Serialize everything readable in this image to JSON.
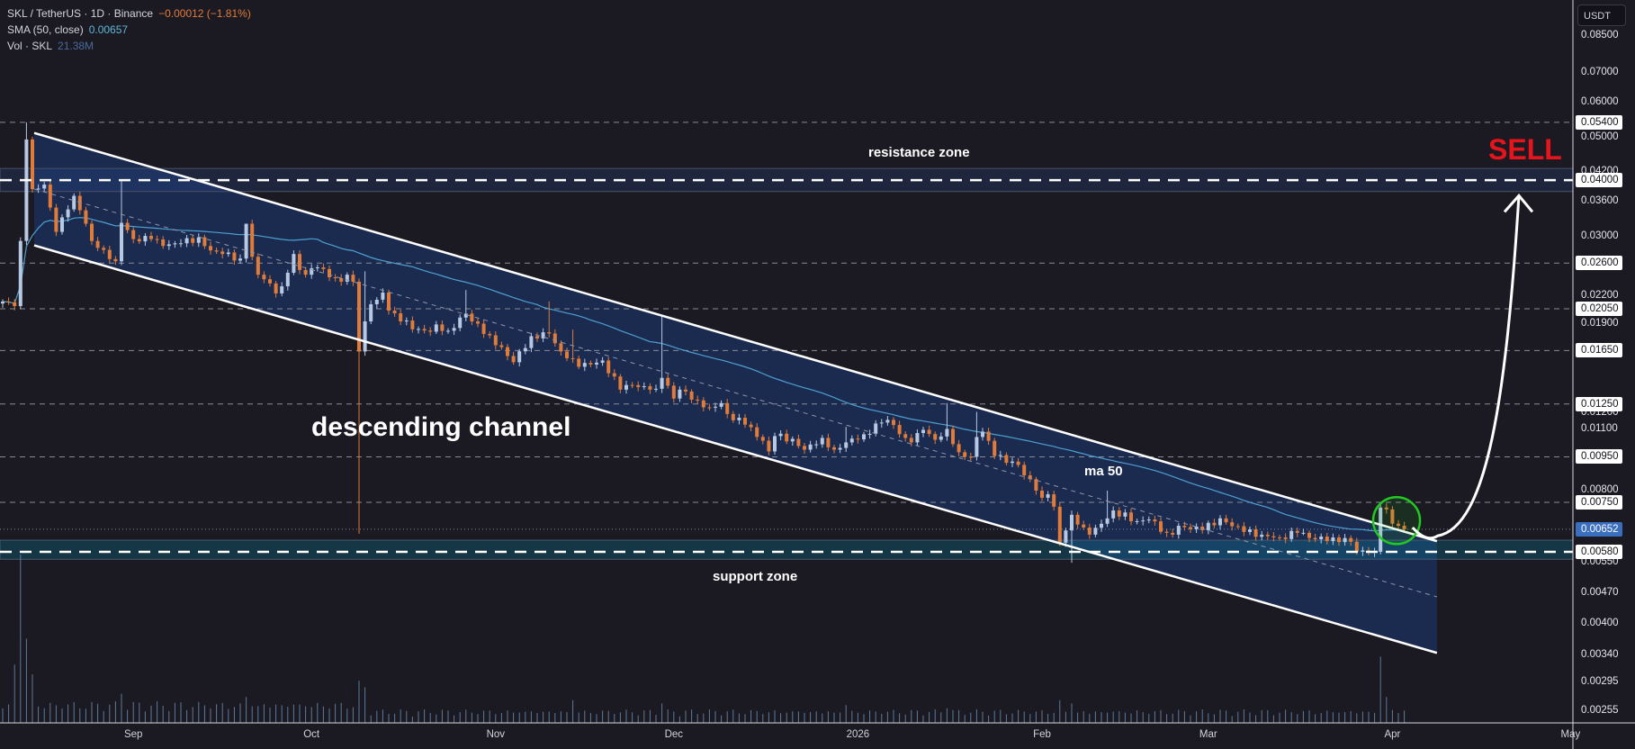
{
  "legend": {
    "symbol": "SKL / TetherUS · 1D · Binance",
    "change": "−0.00012 (−1.81%)",
    "sma_label": "SMA (50, close)",
    "sma_value": "0.00657",
    "vol_label": "Vol · SKL",
    "vol_value": "21.38M"
  },
  "currency_button": "USDT",
  "annotations": {
    "sell": "SELL",
    "resistance": "resistance zone",
    "support": "support zone",
    "channel": "descending channel",
    "ma": "ma 50"
  },
  "colors": {
    "background": "#1b1a23",
    "up": "#b7c8e2",
    "down": "#e07b39",
    "sma": "#4ea0d0",
    "sell": "#e8141c",
    "channel_fill": "#1b2b4f",
    "circle": "#22c91e",
    "volume": "#5d7a99"
  },
  "chart_data": {
    "type": "candlestick",
    "title": "SKL / TetherUS · 1D · Binance",
    "scale": "log",
    "ylim": [
      0.00225,
      0.095
    ],
    "x_range_days": [
      -1,
      266
    ],
    "x_ticks": [
      {
        "label": "Sep",
        "day": 22
      },
      {
        "label": "Oct",
        "day": 52
      },
      {
        "label": "Nov",
        "day": 83
      },
      {
        "label": "Dec",
        "day": 113
      },
      {
        "label": "2026",
        "day": 144
      },
      {
        "label": "Feb",
        "day": 175
      },
      {
        "label": "Mar",
        "day": 203
      },
      {
        "label": "Apr",
        "day": 234
      },
      {
        "label": "May",
        "day": 264
      }
    ],
    "y_ticks": [
      {
        "label": "0.08500",
        "value": 0.085
      },
      {
        "label": "0.07000",
        "value": 0.07
      },
      {
        "label": "0.06000",
        "value": 0.06
      },
      {
        "label": "0.05000",
        "value": 0.05
      },
      {
        "label": "0.04200",
        "value": 0.042
      },
      {
        "label": "0.03600",
        "value": 0.036
      },
      {
        "label": "0.03000",
        "value": 0.03
      },
      {
        "label": "0.02200",
        "value": 0.022
      },
      {
        "label": "0.01900",
        "value": 0.019
      },
      {
        "label": "0.01200",
        "value": 0.012
      },
      {
        "label": "0.01100",
        "value": 0.011
      },
      {
        "label": "0.00800",
        "value": 0.008
      },
      {
        "label": "0.00550",
        "value": 0.0055
      },
      {
        "label": "0.00470",
        "value": 0.0047
      },
      {
        "label": "0.00400",
        "value": 0.004
      },
      {
        "label": "0.00340",
        "value": 0.0034
      },
      {
        "label": "0.00295",
        "value": 0.00295
      },
      {
        "label": "0.00255",
        "value": 0.00255
      }
    ],
    "levels": [
      {
        "label": "0.05400",
        "value": 0.054
      },
      {
        "label": "0.02600",
        "value": 0.026
      },
      {
        "label": "0.02050",
        "value": 0.0205
      },
      {
        "label": "0.01650",
        "value": 0.0165
      },
      {
        "label": "0.01250",
        "value": 0.0125
      },
      {
        "label": "0.00950",
        "value": 0.0095
      },
      {
        "label": "0.00750",
        "value": 0.0075
      }
    ],
    "resistance_zone": {
      "label": "0.04000",
      "value": 0.04,
      "top": 0.0425,
      "bottom": 0.0377
    },
    "support_zone": {
      "label": "0.00580",
      "value": 0.0058,
      "top": 0.00616,
      "bottom": 0.00558
    },
    "current_price": {
      "label": "0.00652",
      "value": 0.00652
    },
    "channel": {
      "upper": [
        [
          5.3,
          0.0511
        ],
        [
          241.5,
          0.00613
        ]
      ],
      "middle": [
        [
          5.3,
          0.0382
        ],
        [
          241.5,
          0.00459
        ]
      ],
      "lower": [
        [
          5.3,
          0.0285
        ],
        [
          241.5,
          0.00343
        ]
      ]
    },
    "projection_arrow": [
      [
        237.4,
        0.00658
      ],
      [
        241,
        0.0063
      ],
      [
        255.3,
        0.0369
      ]
    ],
    "highlight_circle": {
      "day": 234.7,
      "price": 0.00682
    },
    "series": [
      {
        "name": "SKL/USDT close (keypoints: day, close)",
        "keypoints": [
          [
            0,
            0.02128
          ],
          [
            2,
            0.02079
          ],
          [
            3,
            0.02916
          ],
          [
            4,
            0.04941
          ],
          [
            5,
            0.03817
          ],
          [
            7,
            0.03908
          ],
          [
            8,
            0.03468
          ],
          [
            9,
            0.03057
          ],
          [
            11,
            0.03436
          ],
          [
            12,
            0.03686
          ],
          [
            13,
            0.0342
          ],
          [
            14,
            0.03189
          ],
          [
            15,
            0.02916
          ],
          [
            17,
            0.02784
          ],
          [
            19,
            0.02624
          ],
          [
            20,
            0.03204
          ],
          [
            21,
            0.03085
          ],
          [
            22,
            0.02945
          ],
          [
            25,
            0.02945
          ],
          [
            27,
            0.02842
          ],
          [
            30,
            0.02881
          ],
          [
            33,
            0.02972
          ],
          [
            35,
            0.02777
          ],
          [
            37,
            0.02725
          ],
          [
            40,
            0.02661
          ],
          [
            41,
            0.03189
          ],
          [
            42,
            0.02686
          ],
          [
            43,
            0.02447
          ],
          [
            44,
            0.0239
          ],
          [
            46,
            0.0222
          ],
          [
            47,
            0.02304
          ],
          [
            48,
            0.02472
          ],
          [
            49,
            0.02725
          ],
          [
            50,
            0.02508
          ],
          [
            51,
            0.02447
          ],
          [
            53,
            0.02542
          ],
          [
            55,
            0.02414
          ],
          [
            57,
            0.0236
          ],
          [
            58,
            0.02447
          ],
          [
            59,
            0.0236
          ],
          [
            60,
            0.01642
          ],
          [
            61,
            0.0192
          ],
          [
            62,
            0.02099
          ],
          [
            63,
            0.02149
          ],
          [
            64,
            0.0223
          ],
          [
            65,
            0.02031
          ],
          [
            67,
            0.0192
          ],
          [
            70,
            0.01846
          ],
          [
            72,
            0.0182
          ],
          [
            73,
            0.0189
          ],
          [
            75,
            0.01829
          ],
          [
            78,
            0.01999
          ],
          [
            79,
            0.0192
          ],
          [
            82,
            0.01786
          ],
          [
            85,
            0.01604
          ],
          [
            86,
            0.01553
          ],
          [
            89,
            0.01778
          ],
          [
            92,
            0.01803
          ],
          [
            94,
            0.01642
          ],
          [
            96,
            0.01582
          ],
          [
            97,
            0.01517
          ],
          [
            101,
            0.01567
          ],
          [
            104,
            0.01347
          ],
          [
            106,
            0.01379
          ],
          [
            109,
            0.01347
          ],
          [
            110,
            0.01353
          ],
          [
            111,
            0.01432
          ],
          [
            113,
            0.01286
          ],
          [
            114,
            0.01347
          ],
          [
            117,
            0.01274
          ],
          [
            119,
            0.01227
          ],
          [
            121,
            0.01256
          ],
          [
            122,
            0.01187
          ],
          [
            125,
            0.01123
          ],
          [
            128,
            0.01033
          ],
          [
            129,
            0.00977
          ],
          [
            130,
            0.01058
          ],
          [
            133,
            0.01043
          ],
          [
            135,
            0.00986
          ],
          [
            138,
            0.01048
          ],
          [
            140,
            0.00986
          ],
          [
            142,
            0.01024
          ],
          [
            145,
            0.01068
          ],
          [
            148,
            0.01135
          ],
          [
            149,
            0.01151
          ],
          [
            152,
            0.01048
          ],
          [
            153,
            0.01024
          ],
          [
            155,
            0.01093
          ],
          [
            157,
            0.01038
          ],
          [
            159,
            0.01098
          ],
          [
            161,
            0.00973
          ],
          [
            163,
            0.0095
          ],
          [
            164,
            0.01053
          ],
          [
            165,
            0.01083
          ],
          [
            167,
            0.00954
          ],
          [
            171,
            0.00911
          ],
          [
            174,
            0.00797
          ],
          [
            175,
            0.00768
          ],
          [
            176,
            0.00782
          ],
          [
            177,
            0.00733
          ],
          [
            178,
            0.00608
          ],
          [
            180,
            0.00703
          ],
          [
            182,
            0.00658
          ],
          [
            183,
            0.00634
          ],
          [
            186,
            0.0069
          ],
          [
            187,
            0.00719
          ],
          [
            191,
            0.0068
          ],
          [
            193,
            0.00686
          ],
          [
            196,
            0.0064
          ],
          [
            197,
            0.00634
          ],
          [
            198,
            0.00664
          ],
          [
            202,
            0.00649
          ],
          [
            205,
            0.0069
          ],
          [
            209,
            0.00643
          ],
          [
            212,
            0.00634
          ],
          [
            215,
            0.00625
          ],
          [
            218,
            0.0064
          ],
          [
            221,
            0.00619
          ],
          [
            224,
            0.00625
          ],
          [
            227,
            0.00611
          ],
          [
            228,
            0.0058
          ],
          [
            230,
            0.00577
          ],
          [
            231,
            0.0058
          ],
          [
            232,
            0.0073
          ],
          [
            233,
            0.00723
          ],
          [
            234,
            0.00671
          ],
          [
            235,
            0.00664
          ],
          [
            236,
            0.00652
          ]
        ],
        "wick_extremes": [
          [
            4,
            "high",
            0.054
          ],
          [
            20,
            "high",
            0.04
          ],
          [
            41,
            "high",
            0.0319
          ],
          [
            60,
            "low",
            0.00637
          ],
          [
            61,
            "high",
            0.0249
          ],
          [
            78,
            "high",
            0.0226
          ],
          [
            92,
            "high",
            0.0213
          ],
          [
            96,
            "high",
            0.0184
          ],
          [
            111,
            "high",
            0.0197
          ],
          [
            142,
            "high",
            0.0111
          ],
          [
            159,
            "high",
            0.01256
          ],
          [
            164,
            "high",
            0.012
          ],
          [
            180,
            "low",
            0.00548
          ],
          [
            186,
            "high",
            0.00797
          ],
          [
            232,
            "high",
            0.0075
          ]
        ]
      }
    ],
    "volume_millions": {
      "current": 21.38,
      "max": 520,
      "spikes": [
        [
          2,
          180
        ],
        [
          3,
          520
        ],
        [
          4,
          260
        ],
        [
          5,
          150
        ],
        [
          20,
          90
        ],
        [
          41,
          80
        ],
        [
          60,
          130
        ],
        [
          61,
          110
        ],
        [
          96,
          70
        ],
        [
          111,
          60
        ],
        [
          142,
          55
        ],
        [
          159,
          45
        ],
        [
          178,
          70
        ],
        [
          180,
          60
        ],
        [
          232,
          205
        ],
        [
          233,
          80
        ],
        [
          234,
          40
        ]
      ]
    }
  }
}
